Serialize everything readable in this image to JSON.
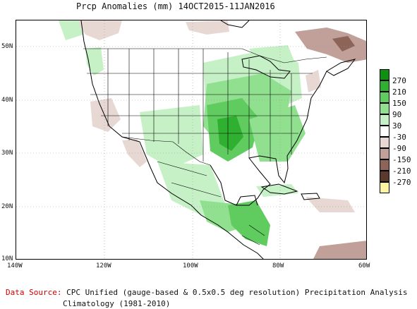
{
  "map": {
    "title": "Prcp Anomalies (mm) 14OCT2015-11JAN2016",
    "lat_labels": [
      "50N",
      "40N",
      "30N",
      "20N",
      "10N"
    ],
    "lon_labels": [
      "140W",
      "120W",
      "100W",
      "80W",
      "60W"
    ],
    "legend": {
      "labels": [
        "270",
        "210",
        "150",
        "90",
        "30",
        "-30",
        "-90",
        "-150",
        "-210",
        "-270"
      ],
      "colors": [
        "#109010",
        "#30b030",
        "#60cc60",
        "#90e090",
        "#c6f0c6",
        "#ffffff",
        "#e8d8d4",
        "#c0a098",
        "#8c6458",
        "#5a3a2e",
        "#fff5a0"
      ]
    },
    "source_label": "Data Source:",
    "source_text": "CPC Unified (gauge-based & 0.5x0.5 deg resolution) Precipitation Analysis",
    "climatology": "Climatology (1981-2010)",
    "colors": {
      "land_outline": "#000000",
      "grid": "#999999",
      "wet_light": "#c6f0c6",
      "wet_mid": "#90e090",
      "wet_strong": "#60cc60",
      "wet_heavy": "#30b030",
      "dry_light": "#e8d8d4",
      "dry_mid": "#c0a098",
      "dry_heavy": "#8c6458"
    }
  }
}
